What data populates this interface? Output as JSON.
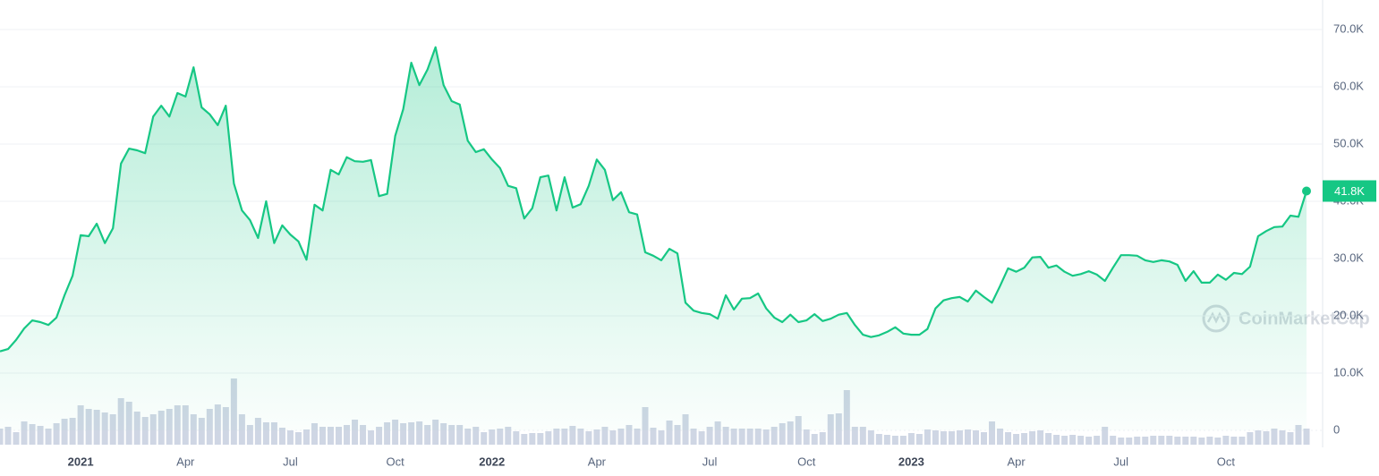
{
  "chart_data": {
    "type": "line",
    "watermark": "CoinMarketCap",
    "grid": true,
    "ylim": [
      0,
      75000
    ],
    "yticks": [
      0,
      {
        "value": 10000,
        "label": "10.0K"
      },
      {
        "value": 20000,
        "label": "20.0K"
      },
      {
        "value": 30000,
        "label": "30.0K"
      },
      {
        "value": 40000,
        "label": "40.0K"
      },
      {
        "value": 50000,
        "label": "50.0K"
      },
      {
        "value": 60000,
        "label": "60.0K"
      },
      {
        "value": 70000,
        "label": "70.0K"
      }
    ],
    "y2lim": [
      0,
      100
    ],
    "categories": [
      null,
      null,
      null,
      null,
      null,
      null,
      null,
      null,
      null,
      null,
      "2021",
      null,
      null,
      null,
      null,
      null,
      null,
      null,
      null,
      null,
      null,
      null,
      null,
      "Apr",
      null,
      null,
      null,
      null,
      null,
      null,
      null,
      null,
      null,
      null,
      null,
      null,
      "Jul",
      null,
      null,
      null,
      null,
      null,
      null,
      null,
      null,
      null,
      null,
      null,
      null,
      "Oct",
      null,
      null,
      null,
      null,
      null,
      null,
      null,
      null,
      null,
      null,
      null,
      "2022",
      null,
      null,
      null,
      null,
      null,
      null,
      null,
      null,
      null,
      null,
      null,
      null,
      "Apr",
      null,
      null,
      null,
      null,
      null,
      null,
      null,
      null,
      null,
      null,
      null,
      null,
      null,
      "Jul",
      null,
      null,
      null,
      null,
      null,
      null,
      null,
      null,
      null,
      null,
      null,
      "Oct",
      null,
      null,
      null,
      null,
      null,
      null,
      null,
      null,
      null,
      null,
      null,
      null,
      "2023",
      null,
      null,
      null,
      null,
      null,
      null,
      null,
      null,
      null,
      null,
      null,
      null,
      "Apr",
      null,
      null,
      null,
      null,
      null,
      null,
      null,
      null,
      null,
      null,
      null,
      null,
      "Jul",
      null,
      null,
      null,
      null,
      null,
      null,
      null,
      null,
      null,
      null,
      null,
      null,
      "Oct",
      null,
      null,
      null,
      null,
      null,
      null,
      null,
      null,
      null,
      null
    ],
    "series": [
      {
        "color": "#16c784",
        "values": [
          13800,
          14200,
          15800,
          17800,
          19200,
          18900,
          18400,
          19700,
          23600,
          27000,
          34100,
          33900,
          36100,
          32700,
          35300,
          46600,
          49200,
          48900,
          48400,
          54800,
          56700,
          54800,
          58900,
          58300,
          63400,
          56400,
          55200,
          53300,
          56700,
          43100,
          38400,
          36700,
          33600,
          40000,
          32700,
          35800,
          34200,
          33000,
          29800,
          39400,
          38400,
          45500,
          44700,
          47700,
          47000,
          46900,
          47200,
          40900,
          41300,
          51400,
          56100,
          64200,
          60300,
          63000,
          66900,
          60300,
          57500,
          56900,
          50600,
          48600,
          49100,
          47300,
          45800,
          42700,
          42300,
          37000,
          38800,
          44200,
          44500,
          38400,
          44200,
          38900,
          39500,
          42700,
          47300,
          45500,
          40200,
          41600,
          38100,
          37700,
          31100,
          30500,
          29700,
          31700,
          30900,
          22300,
          20900,
          20500,
          20300,
          19500,
          23600,
          21100,
          23000,
          23100,
          23900,
          21300,
          19700,
          18900,
          20200,
          18900,
          19200,
          20300,
          19100,
          19500,
          20200,
          20500,
          18400,
          16700,
          16300,
          16600,
          17200,
          18000,
          16900,
          16700,
          16700,
          17700,
          21300,
          22700,
          23100,
          23300,
          22500,
          24400,
          23300,
          22300,
          25200,
          28300,
          27700,
          28400,
          30200,
          30300,
          28400,
          28800,
          27700,
          27000,
          27300,
          27800,
          27200,
          26100,
          28400,
          30600,
          30600,
          30500,
          29700,
          29400,
          29700,
          29500,
          28900,
          26100,
          27800,
          25800,
          25800,
          27200,
          26300,
          27500,
          27300,
          28600,
          33900,
          34800,
          35500,
          35600,
          37500,
          37300,
          41800
        ],
        "value_labels": [
          null,
          null,
          null,
          null,
          null,
          null,
          null,
          null,
          null,
          null,
          null,
          null,
          null,
          null,
          null,
          null,
          null,
          null,
          null,
          null,
          null,
          null,
          null,
          null,
          null,
          null,
          null,
          null,
          null,
          null,
          null,
          null,
          null,
          null,
          null,
          null,
          null,
          null,
          null,
          null,
          null,
          null,
          null,
          null,
          null,
          null,
          null,
          null,
          null,
          null,
          null,
          null,
          null,
          null,
          null,
          null,
          null,
          null,
          null,
          null,
          null,
          null,
          null,
          null,
          null,
          null,
          null,
          null,
          null,
          null,
          null,
          null,
          null,
          null,
          null,
          null,
          null,
          null,
          null,
          null,
          null,
          null,
          null,
          null,
          null,
          null,
          null,
          null,
          null,
          null,
          null,
          null,
          null,
          null,
          null,
          null,
          null,
          null,
          null,
          null,
          null,
          null,
          null,
          null,
          null,
          null,
          null,
          null,
          null,
          null,
          null,
          null,
          null,
          null,
          null,
          null,
          null,
          null,
          null,
          null,
          null,
          null,
          null,
          null,
          null,
          null,
          null,
          null,
          null,
          null,
          null,
          null,
          null,
          null,
          null,
          null,
          null,
          null,
          null,
          null,
          null,
          null,
          null,
          null,
          null,
          null,
          null,
          null,
          null,
          null,
          null,
          null,
          null,
          null,
          null,
          null,
          null,
          null,
          null,
          null,
          null,
          null,
          "41.8K"
        ]
      },
      {
        "type": "bar",
        "axis": "y2",
        "color": "#cfd6e4",
        "values": [
          18,
          20,
          14,
          26,
          23,
          21,
          18,
          24,
          29,
          30,
          44,
          40,
          39,
          36,
          34,
          52,
          48,
          37,
          31,
          34,
          38,
          40,
          44,
          44,
          34,
          30,
          40,
          45,
          42,
          74,
          34,
          22,
          30,
          25,
          25,
          19,
          16,
          14,
          17,
          24,
          20,
          20,
          20,
          22,
          28,
          22,
          16,
          20,
          25,
          28,
          24,
          25,
          26,
          22,
          28,
          24,
          22,
          22,
          18,
          20,
          14,
          17,
          18,
          20,
          15,
          12,
          13,
          13,
          15,
          18,
          18,
          21,
          18,
          15,
          17,
          20,
          16,
          18,
          22,
          18,
          42,
          19,
          16,
          27,
          22,
          34,
          18,
          15,
          20,
          26,
          20,
          18,
          18,
          18,
          18,
          17,
          20,
          24,
          26,
          32,
          17,
          12,
          14,
          34,
          35,
          61,
          20,
          20,
          16,
          12,
          11,
          10,
          10,
          13,
          12,
          17,
          16,
          15,
          15,
          16,
          17,
          16,
          14,
          26,
          18,
          14,
          12,
          13,
          15,
          16,
          13,
          11,
          10,
          11,
          10,
          9,
          10,
          20,
          10,
          8,
          8,
          9,
          9,
          10,
          10,
          10,
          9,
          9,
          9,
          8,
          9,
          8,
          10,
          9,
          9,
          14,
          16,
          15,
          18,
          16,
          14,
          22,
          18
        ]
      }
    ]
  }
}
